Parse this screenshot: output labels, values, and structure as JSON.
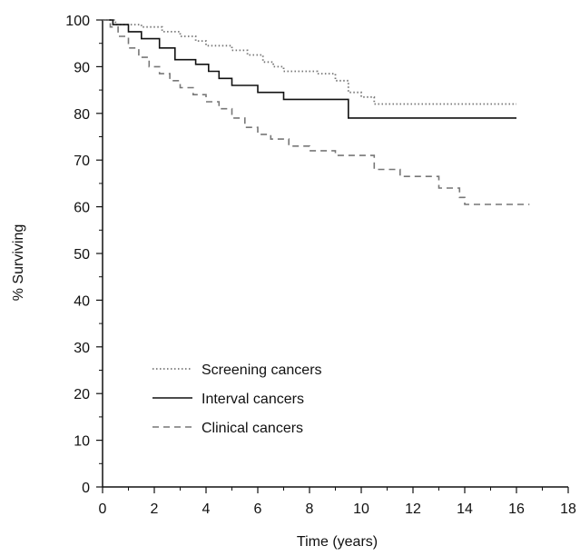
{
  "chart_data": {
    "type": "line",
    "title": "",
    "xlabel": "Time (years)",
    "ylabel": "% Surviving",
    "xlim": [
      0,
      18
    ],
    "ylim": [
      0,
      100
    ],
    "xticks": [
      0,
      2,
      4,
      6,
      8,
      10,
      12,
      14,
      16,
      18
    ],
    "yticks": [
      0,
      10,
      20,
      30,
      40,
      50,
      60,
      70,
      80,
      90,
      100
    ],
    "xtick_labels": [
      "0",
      "2",
      "4",
      "6",
      "8",
      "10",
      "12",
      "14",
      "16",
      "18"
    ],
    "ytick_labels": [
      "0",
      "10",
      "20",
      "30",
      "40",
      "50",
      "60",
      "70",
      "80",
      "90",
      "100"
    ],
    "grid": false,
    "legend_position": "lower-left",
    "step": true,
    "series": [
      {
        "name": "Screening cancers",
        "style": "dotted",
        "color": "#777777",
        "x": [
          0,
          0.5,
          1.5,
          2.3,
          3.0,
          3.6,
          4.0,
          5.0,
          5.6,
          6.2,
          6.6,
          7.0,
          8.3,
          9.0,
          9.5,
          10.0,
          10.5,
          16.0
        ],
        "y": [
          100,
          99,
          98.5,
          97.5,
          96.5,
          95.5,
          94.5,
          93.5,
          92.5,
          91.0,
          90.0,
          89.0,
          88.5,
          87.0,
          84.5,
          83.5,
          82.0,
          82.0
        ]
      },
      {
        "name": "Interval cancers",
        "style": "solid",
        "color": "#111111",
        "x": [
          0,
          0.4,
          1.0,
          1.5,
          2.2,
          2.8,
          3.6,
          4.1,
          4.5,
          5.0,
          6.0,
          7.0,
          9.5,
          16.0
        ],
        "y": [
          100,
          99,
          97.5,
          96.0,
          94.0,
          91.5,
          90.5,
          89.0,
          87.5,
          86.0,
          84.5,
          83.0,
          79.0,
          79.0
        ]
      },
      {
        "name": "Clinical cancers",
        "style": "dashed",
        "color": "#777777",
        "x": [
          0,
          0.3,
          0.6,
          1.0,
          1.4,
          1.8,
          2.2,
          2.6,
          3.0,
          3.5,
          4.0,
          4.5,
          5.0,
          5.5,
          6.0,
          6.5,
          7.2,
          8.0,
          9.0,
          10.5,
          11.5,
          13.0,
          13.8,
          14.0,
          16.5
        ],
        "y": [
          100,
          98.5,
          96.5,
          94.0,
          92.0,
          90.0,
          88.5,
          87.0,
          85.5,
          84.0,
          82.5,
          81.0,
          79.0,
          77.0,
          75.5,
          74.5,
          73.0,
          72.0,
          71.0,
          68.0,
          66.5,
          64.0,
          62.0,
          60.5,
          60.5
        ]
      }
    ]
  }
}
